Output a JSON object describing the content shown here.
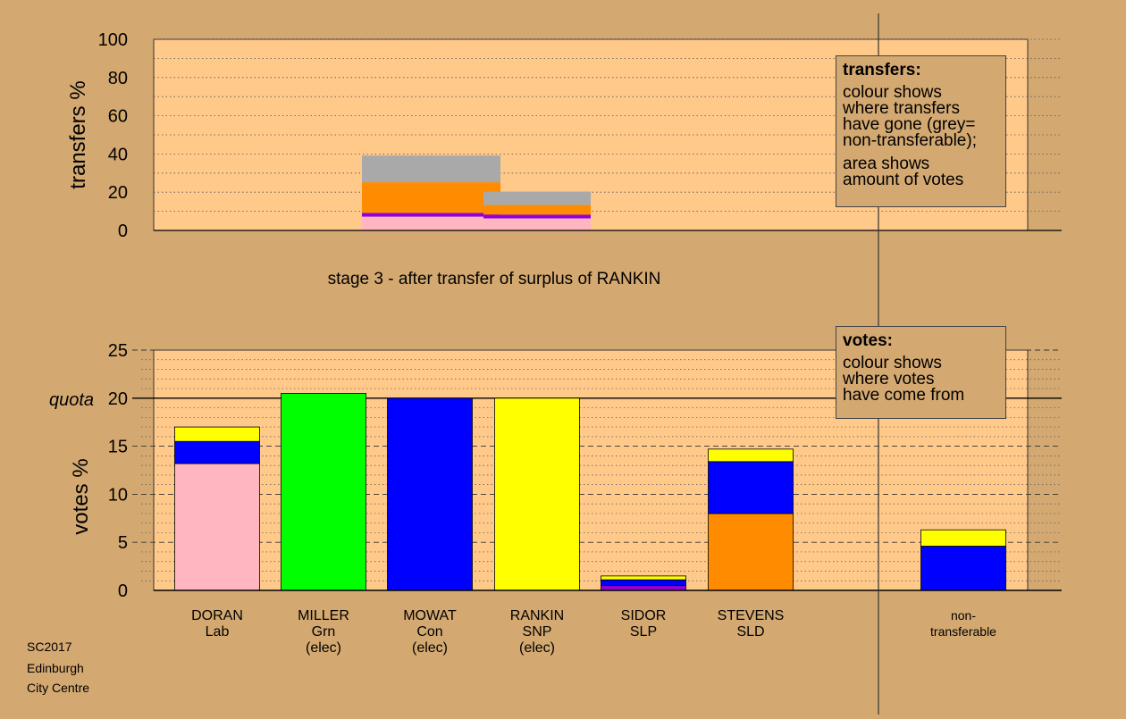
{
  "chart_data": [
    {
      "type": "bar",
      "subtype": "stepped-area",
      "ylabel": "transfers %",
      "ylim": [
        0,
        100
      ],
      "yticks": [
        0,
        20,
        40,
        60,
        80,
        100
      ],
      "grid": "dotted minor every 10",
      "caption": "stage 3 - after transfer of surplus of RANKIN",
      "note": {
        "title": "transfers:",
        "lines": [
          "colour shows",
          "where transfers",
          "have gone (grey=",
          "non-transferable);"
        ],
        "lines2": [
          "area shows",
          "amount of votes"
        ],
        "placement": "top-right"
      },
      "blocks": [
        {
          "segments": [
            {
              "color": "#ffb6c1",
              "value": 7.2
            },
            {
              "color": "#9400d3",
              "value": 2.0
            },
            {
              "color": "#ff8c00",
              "value": 16.0
            },
            {
              "color": "#a9a9a9",
              "value": 14.0
            }
          ]
        },
        {
          "segments": [
            {
              "color": "#ffb6c1",
              "value": 6.3
            },
            {
              "color": "#9400d3",
              "value": 2.0
            },
            {
              "color": "#ff8c00",
              "value": 5.0
            },
            {
              "color": "#a9a9a9",
              "value": 7.0
            }
          ]
        }
      ]
    },
    {
      "type": "bar",
      "subtype": "stacked",
      "ylabel": "votes %",
      "ylim": [
        0,
        25
      ],
      "yticks": [
        0,
        5,
        10,
        15,
        20,
        25
      ],
      "quota": {
        "label": "quota",
        "value": 20
      },
      "grid": "dashed every 5, dotted every 1",
      "note": {
        "title": "votes:",
        "lines": [
          "colour shows",
          "where votes",
          "have come from"
        ],
        "placement": "top-right"
      },
      "categories": [
        {
          "lines": [
            "DORAN",
            "Lab"
          ],
          "segments": [
            {
              "color": "#ffb6c1",
              "value": 13.2
            },
            {
              "color": "#0000ff",
              "value": 2.3
            },
            {
              "color": "#ffff00",
              "value": 1.5
            }
          ]
        },
        {
          "lines": [
            "MILLER",
            "Grn",
            "(elec)"
          ],
          "segments": [
            {
              "color": "#00ff00",
              "value": 20.5
            }
          ]
        },
        {
          "lines": [
            "MOWAT",
            "Con",
            "(elec)"
          ],
          "segments": [
            {
              "color": "#0000ff",
              "value": 20.0
            }
          ]
        },
        {
          "lines": [
            "RANKIN",
            "SNP",
            "(elec)"
          ],
          "segments": [
            {
              "color": "#ffff00",
              "value": 20.0
            }
          ]
        },
        {
          "lines": [
            "SIDOR",
            "SLP"
          ],
          "segments": [
            {
              "color": "#9400d3",
              "value": 0.5
            },
            {
              "color": "#0000ff",
              "value": 0.6
            },
            {
              "color": "#ffff00",
              "value": 0.4
            }
          ]
        },
        {
          "lines": [
            "STEVENS",
            "SLD"
          ],
          "segments": [
            {
              "color": "#ff8c00",
              "value": 8.0
            },
            {
              "color": "#0000ff",
              "value": 5.4
            },
            {
              "color": "#ffff00",
              "value": 1.3
            }
          ]
        },
        {
          "lines": [
            "non-",
            "transferable"
          ],
          "separated": true,
          "small": true,
          "segments": [
            {
              "color": "#0000ff",
              "value": 4.6
            },
            {
              "color": "#ffff00",
              "value": 1.7
            }
          ]
        }
      ]
    }
  ],
  "credits": [
    "SC2017",
    "Edinburgh",
    "City Centre"
  ],
  "colors": {
    "page": "#d4a971",
    "plot": "#ffc98a"
  }
}
